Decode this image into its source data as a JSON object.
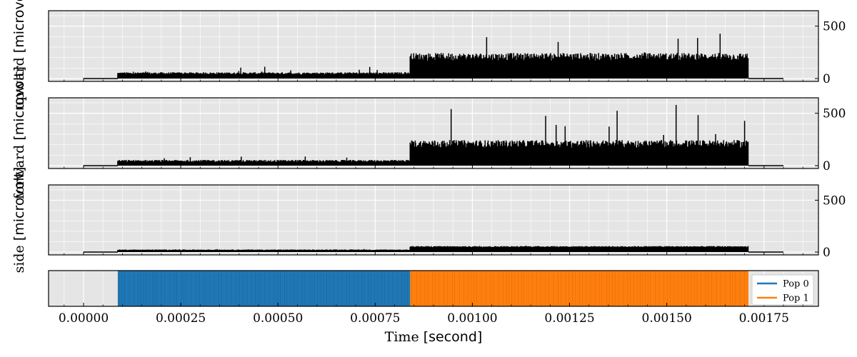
{
  "chart_data": [
    {
      "type": "line",
      "panel": "upper",
      "ylabel_main": "upward ",
      "ylabel_unit": "[microvolt]",
      "yticks": [
        0,
        500
      ],
      "ylim": [
        0,
        620
      ],
      "xlim": [
        -9e-05,
        0.00189
      ],
      "grid": true,
      "series": [
        {
          "segments": [
            {
              "x": [
                0.0,
                8.8e-05
              ],
              "mean": 0,
              "jitter": 0,
              "peak": 0
            },
            {
              "x": [
                8.8e-05,
                0.00084
              ],
              "mean": 45,
              "jitter": 15,
              "peak": 115
            },
            {
              "x": [
                0.00084,
                0.00171
              ],
              "mean": 190,
              "jitter": 55,
              "peak": 460
            },
            {
              "x": [
                0.00171,
                0.0018
              ],
              "mean": 0,
              "jitter": 0,
              "peak": 0
            }
          ]
        }
      ]
    },
    {
      "type": "line",
      "panel": "middle",
      "ylabel_main": "forward ",
      "ylabel_unit": "[microvolt]",
      "yticks": [
        0,
        500
      ],
      "ylim": [
        0,
        620
      ],
      "xlim": [
        -9e-05,
        0.00189
      ],
      "grid": true,
      "series": [
        {
          "segments": [
            {
              "x": [
                0.0,
                8.8e-05
              ],
              "mean": 0,
              "jitter": 0,
              "peak": 0
            },
            {
              "x": [
                8.8e-05,
                0.00084
              ],
              "mean": 40,
              "jitter": 15,
              "peak": 110
            },
            {
              "x": [
                0.00084,
                0.00171
              ],
              "mean": 190,
              "jitter": 55,
              "peak": 590
            },
            {
              "x": [
                0.00171,
                0.0018
              ],
              "mean": 0,
              "jitter": 0,
              "peak": 0
            }
          ]
        }
      ]
    },
    {
      "type": "line",
      "panel": "lower",
      "ylabel_main": "side ",
      "ylabel_unit": "[microvolt]",
      "yticks": [
        0,
        500
      ],
      "ylim": [
        0,
        620
      ],
      "xlim": [
        -9e-05,
        0.00189
      ],
      "grid": true,
      "series": [
        {
          "segments": [
            {
              "x": [
                0.0,
                8.8e-05
              ],
              "mean": 0,
              "jitter": 0,
              "peak": 0
            },
            {
              "x": [
                8.8e-05,
                0.00084
              ],
              "mean": 20,
              "jitter": 5,
              "peak": 30
            },
            {
              "x": [
                0.00084,
                0.00171
              ],
              "mean": 50,
              "jitter": 8,
              "peak": 65
            },
            {
              "x": [
                0.00171,
                0.0018
              ],
              "mean": 0,
              "jitter": 0,
              "peak": 0
            }
          ]
        }
      ]
    },
    {
      "type": "area",
      "panel": "population",
      "xlim": [
        -9e-05,
        0.00189
      ],
      "xticks": [
        "0.00000",
        "0.00025",
        "0.00050",
        "0.00075",
        "0.00100",
        "0.00125",
        "0.00150",
        "0.00175"
      ],
      "xlabel_main": "Time ",
      "xlabel_unit": "[second]",
      "legend": "right",
      "series": [
        {
          "name": "Pop 0",
          "x": [
            8.8e-05,
            0.00084
          ],
          "color": "#1f77b4"
        },
        {
          "name": "Pop 1",
          "x": [
            0.00084,
            0.00171
          ],
          "color": "#ff7f0e"
        }
      ]
    }
  ],
  "colors": {
    "background": "#e5e5e5",
    "grid": "#ffffff",
    "trace": "#000000"
  }
}
